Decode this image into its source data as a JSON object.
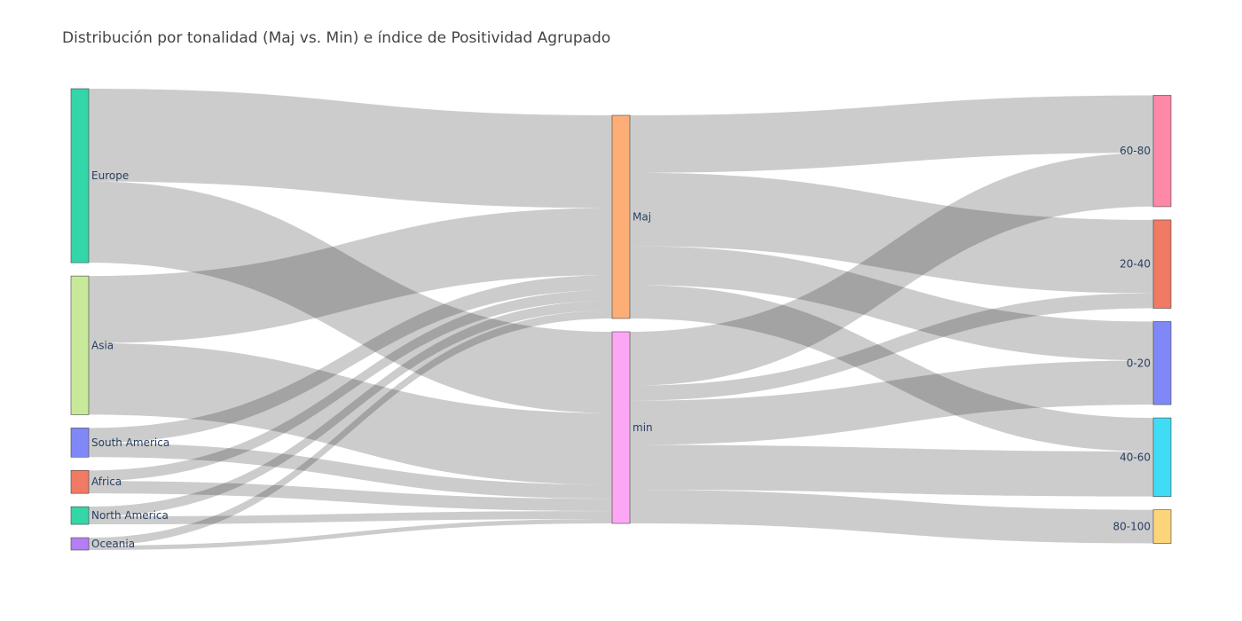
{
  "chart_data": {
    "type": "sankey",
    "title": "Distribución por tonalidad (Maj vs. Min) e índice de Positividad Agrupado",
    "nodes": [
      {
        "id": "Europe",
        "label": "Europe",
        "color": "#33d6a6",
        "column": 0
      },
      {
        "id": "Asia",
        "label": "Asia",
        "color": "#c8e99a",
        "column": 0
      },
      {
        "id": "South America",
        "label": "South America",
        "color": "#8088f7",
        "column": 0
      },
      {
        "id": "Africa",
        "label": "Africa",
        "color": "#f17a64",
        "column": 0
      },
      {
        "id": "North America",
        "label": "North America",
        "color": "#33d6a6",
        "column": 0
      },
      {
        "id": "Oceania",
        "label": "Oceania",
        "color": "#b57ef5",
        "column": 0
      },
      {
        "id": "Maj",
        "label": "Maj",
        "color": "#fdae76",
        "column": 1
      },
      {
        "id": "min",
        "label": "min",
        "color": "#fca7f4",
        "column": 1
      },
      {
        "id": "60-80",
        "label": "60-80",
        "color": "#fd88a8",
        "column": 2
      },
      {
        "id": "20-40",
        "label": "20-40",
        "color": "#f17a64",
        "column": 2
      },
      {
        "id": "0-20",
        "label": "0-20",
        "color": "#8088f7",
        "column": 2
      },
      {
        "id": "40-60",
        "label": "40-60",
        "color": "#40dcf5",
        "column": 2
      },
      {
        "id": "80-100",
        "label": "80-100",
        "color": "#fcd57a",
        "column": 2
      }
    ],
    "links": [
      {
        "source": "Europe",
        "target": "Maj",
        "value": 105
      },
      {
        "source": "Europe",
        "target": "min",
        "value": 92
      },
      {
        "source": "Asia",
        "target": "Maj",
        "value": 76
      },
      {
        "source": "Asia",
        "target": "min",
        "value": 81
      },
      {
        "source": "South America",
        "target": "Maj",
        "value": 17
      },
      {
        "source": "South America",
        "target": "min",
        "value": 16
      },
      {
        "source": "Africa",
        "target": "Maj",
        "value": 12
      },
      {
        "source": "Africa",
        "target": "min",
        "value": 14
      },
      {
        "source": "North America",
        "target": "Maj",
        "value": 11
      },
      {
        "source": "North America",
        "target": "min",
        "value": 9
      },
      {
        "source": "Oceania",
        "target": "Maj",
        "value": 9
      },
      {
        "source": "Oceania",
        "target": "min",
        "value": 5
      },
      {
        "source": "Maj",
        "target": "60-80",
        "value": 65
      },
      {
        "source": "Maj",
        "target": "20-40",
        "value": 83
      },
      {
        "source": "Maj",
        "target": "0-20",
        "value": 44
      },
      {
        "source": "Maj",
        "target": "40-60",
        "value": 38
      },
      {
        "source": "min",
        "target": "60-80",
        "value": 61
      },
      {
        "source": "min",
        "target": "20-40",
        "value": 17
      },
      {
        "source": "min",
        "target": "0-20",
        "value": 50
      },
      {
        "source": "min",
        "target": "40-60",
        "value": 51
      },
      {
        "source": "min",
        "target": "80-100",
        "value": 38
      }
    ],
    "link_color": "#000000"
  }
}
